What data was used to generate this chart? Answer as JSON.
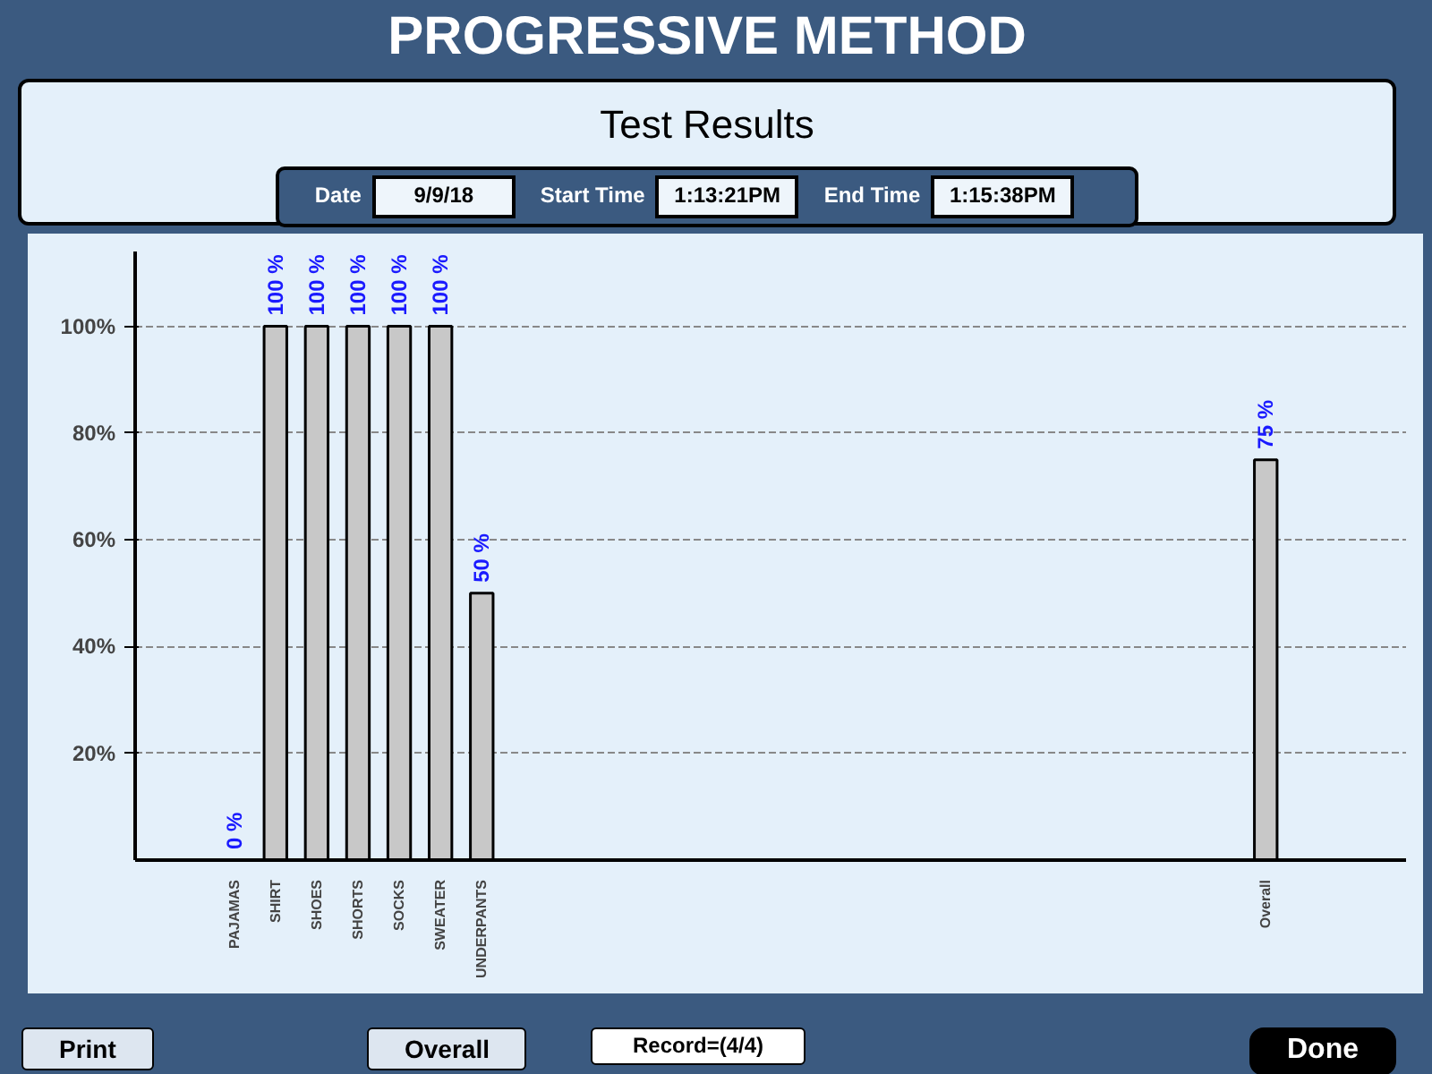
{
  "chart_data": {
    "type": "bar",
    "title": "PROGRESSIVE METHOD",
    "subtitle": "Test Results",
    "categories": [
      "PAJAMAS",
      "SHIRT",
      "SHOES",
      "SHORTS",
      "SOCKS",
      "SWEATER",
      "UNDERPANTS",
      null,
      null,
      null,
      null,
      null,
      null,
      null,
      null,
      null,
      null,
      null,
      null,
      null,
      null,
      null,
      null,
      null,
      null,
      "Overall"
    ],
    "values": [
      0,
      100,
      100,
      100,
      100,
      100,
      50,
      null,
      null,
      null,
      null,
      null,
      null,
      null,
      null,
      null,
      null,
      null,
      null,
      null,
      null,
      null,
      null,
      null,
      null,
      75
    ],
    "value_labels": [
      "0 %",
      "100 %",
      "100 %",
      "100 %",
      "100 %",
      "100 %",
      "50 %",
      null,
      null,
      null,
      null,
      null,
      null,
      null,
      null,
      null,
      null,
      null,
      null,
      null,
      null,
      null,
      null,
      null,
      null,
      "75 %"
    ],
    "color": "#c8c8c8",
    "ylim": [
      0,
      114
    ],
    "yticks": [
      {
        "value": 20,
        "label": "20%"
      },
      {
        "value": 40,
        "label": "40%"
      },
      {
        "value": 60,
        "label": "60%"
      },
      {
        "value": 80,
        "label": "80%"
      },
      {
        "value": 100,
        "label": "100%"
      }
    ],
    "grid": "y",
    "annotations": [
      "Date",
      "9/9/18",
      "Start Time",
      "1:13:21PM",
      "End Time",
      "1:15:38PM",
      "Print",
      "Overall",
      "Record=(4/4)",
      "Done"
    ]
  }
}
